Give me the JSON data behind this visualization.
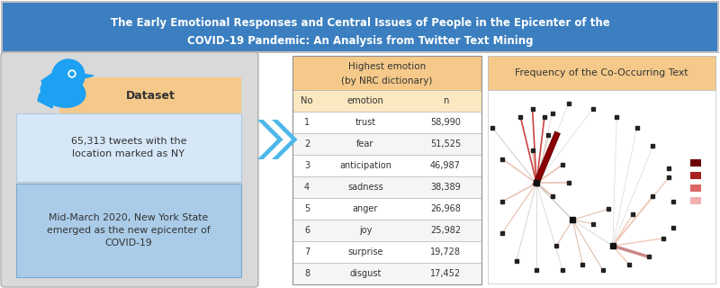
{
  "title_line1": "The Early Emotional Responses and Central Issues of People in the Epicenter of the",
  "title_line2": "COVID-19 Pandemic: An Analysis from Twitter Text Mining",
  "title_bg": "#3c7fc0",
  "title_color": "#ffffff",
  "dataset_label": "Dataset",
  "tweet_text": "65,313 tweets with the\nlocation marked as NY",
  "epicenter_text": "Mid-March 2020, New York State\nemerged as the new epicenter of\nCOVID-19",
  "table_header_line1": "Highest emotion",
  "table_header_line2": "(by NRC dictionary)",
  "table_header_bg": "#f5c98a",
  "col_headers": [
    "No",
    "emotion",
    "n"
  ],
  "rows": [
    [
      1,
      "trust",
      "58,990"
    ],
    [
      2,
      "fear",
      "51,525"
    ],
    [
      3,
      "anticipation",
      "46,987"
    ],
    [
      4,
      "sadness",
      "38,389"
    ],
    [
      5,
      "anger",
      "26,968"
    ],
    [
      6,
      "joy",
      "25,982"
    ],
    [
      7,
      "surprise",
      "19,728"
    ],
    [
      8,
      "disgust",
      "17,452"
    ]
  ],
  "network_title": "Frequency of the Co-Occurring Text",
  "network_title_bg": "#f5c98a",
  "left_panel_bg": "#d9d9d9",
  "dataset_box_bg": "#f5c98a",
  "tweet_box_bg": "#d6e8f8",
  "epicenter_box_bg": "#aacce8",
  "twitter_blue": "#1da1f2",
  "arrow_color": "#4db8e8",
  "row_bg_even": "#ffffff",
  "row_bg_odd": "#f5f5f5",
  "table_border": "#b0b0b0"
}
